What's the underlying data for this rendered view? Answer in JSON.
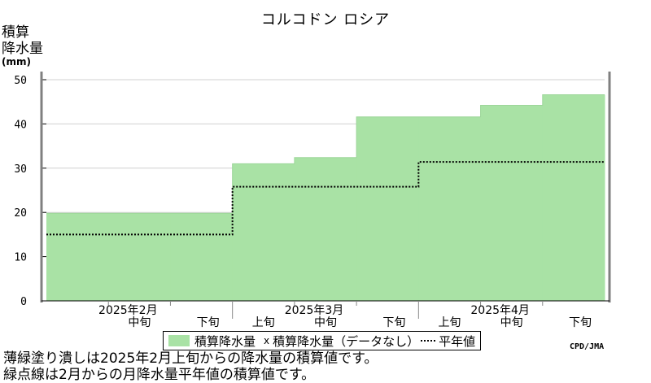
{
  "title": "コルコドン ロシア",
  "ylabel": {
    "line1": "積算",
    "line2": "降水量",
    "unit": "(mm)"
  },
  "legend": {
    "series1": "積算降水量",
    "marker": "x",
    "series2": "積算降水量（データなし）",
    "series3": "平年値"
  },
  "credit": "CPD/JMA",
  "notes": [
    "薄緑塗り潰しは2025年2月上旬からの降水量の積算値です。",
    "緑点線は2月からの月降水量平年値の積算値です。"
  ],
  "colors": {
    "fill": "#a9e2a5",
    "normal_line": "#2b6e2b",
    "grid": "#d0d0d0"
  },
  "chart_data": {
    "type": "area",
    "title": "コルコドン ロシア",
    "ylabel": "積算降水量(mm)",
    "ylim": [
      0,
      50
    ],
    "yticks": [
      0,
      10,
      20,
      30,
      40,
      50
    ],
    "grid": true,
    "legend_position": "bottom",
    "categories": [
      "上旬",
      "中旬",
      "下旬",
      "上旬",
      "中旬",
      "下旬",
      "上旬",
      "中旬",
      "下旬"
    ],
    "visible_tick_labels": [
      "",
      "中旬",
      "下旬",
      "上旬",
      "中旬",
      "下旬",
      "上旬",
      "中旬",
      "下旬"
    ],
    "months": [
      "2025年2月",
      "2025年3月",
      "2025年4月"
    ],
    "series": [
      {
        "name": "積算降水量",
        "style": "filled-step",
        "values": [
          19.8,
          19.8,
          19.8,
          31.0,
          32.4,
          41.6,
          41.6,
          44.2,
          46.6
        ]
      },
      {
        "name": "平年値",
        "style": "dotted-step",
        "values": [
          15.0,
          15.0,
          15.0,
          25.8,
          25.8,
          25.8,
          31.4,
          31.4,
          31.4
        ]
      }
    ]
  }
}
